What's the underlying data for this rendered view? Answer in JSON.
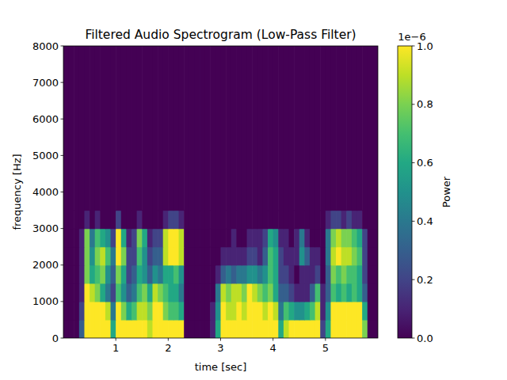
{
  "chart_data": {
    "type": "heatmap",
    "title": "Filtered Audio Spectrogram (Low-Pass Filter)",
    "x_label": "time [sec]",
    "y_label": "frequency [Hz]",
    "xlim": [
      0,
      6
    ],
    "xticks": [
      1,
      2,
      3,
      4,
      5
    ],
    "ylim": [
      0,
      8000
    ],
    "yticks": [
      0,
      1000,
      2000,
      3000,
      4000,
      5000,
      6000,
      7000,
      8000
    ],
    "time_bins": [
      0,
      0.1,
      0.2,
      0.3,
      0.4,
      0.5,
      0.6,
      0.7,
      0.8,
      0.9,
      1,
      1.1,
      1.2,
      1.3,
      1.4,
      1.5,
      1.6,
      1.7,
      1.8,
      1.9,
      2,
      2.1,
      2.2,
      2.3,
      2.4,
      2.5,
      2.6,
      2.7,
      2.8,
      2.9,
      3,
      3.1,
      3.2,
      3.3,
      3.4,
      3.5,
      3.6,
      3.7,
      3.8,
      3.9,
      4,
      4.1,
      4.2,
      4.3,
      4.4,
      4.5,
      4.6,
      4.7,
      4.8,
      4.9,
      5,
      5.1,
      5.2,
      5.3,
      5.4,
      5.5,
      5.6,
      5.7,
      5.8,
      5.9,
      6
    ],
    "freq_bins": [
      0,
      500,
      1000,
      1500,
      2000,
      2500,
      3000,
      3500,
      8000
    ],
    "values": [
      [
        0,
        0,
        0,
        3e-07,
        1e-06,
        1e-06,
        1e-06,
        1e-06,
        1e-06,
        6e-07,
        1e-06,
        1e-06,
        1e-06,
        1e-06,
        1e-06,
        1e-06,
        9e-07,
        1e-06,
        1e-06,
        1e-06,
        1e-06,
        1e-06,
        1e-06,
        0,
        0,
        0,
        0,
        0,
        1e-07,
        6e-07,
        1e-06,
        1e-06,
        1e-06,
        1e-06,
        1e-06,
        1e-06,
        1e-06,
        1e-06,
        1e-06,
        1e-06,
        1e-06,
        6e-07,
        9e-07,
        1e-06,
        1e-06,
        1e-06,
        1e-06,
        1e-06,
        1e-06,
        2e-07,
        6e-07,
        1e-06,
        1e-06,
        1e-06,
        1e-06,
        1e-06,
        1e-06,
        8e-07,
        0,
        0
      ],
      [
        0,
        0,
        0,
        2e-07,
        1e-06,
        1e-06,
        1e-06,
        1e-06,
        9e-07,
        4e-07,
        1e-06,
        8e-07,
        6e-07,
        7e-07,
        9e-07,
        9e-07,
        8e-07,
        1e-06,
        1e-06,
        8e-07,
        7e-07,
        7e-07,
        6e-07,
        0,
        0,
        0,
        0,
        0,
        1e-07,
        5e-07,
        1e-06,
        9e-07,
        9e-07,
        1e-06,
        9e-07,
        1e-06,
        1e-06,
        1e-06,
        9e-07,
        1e-06,
        9e-07,
        4e-07,
        7e-07,
        6e-07,
        5e-07,
        5e-07,
        6e-07,
        7e-07,
        9e-07,
        1e-07,
        5e-07,
        1e-06,
        1e-06,
        1e-06,
        1e-06,
        1e-06,
        1e-06,
        6e-07,
        0,
        0
      ],
      [
        0,
        0,
        0,
        1e-07,
        1e-06,
        9e-07,
        8e-07,
        6e-07,
        4e-07,
        2e-07,
        7e-07,
        5e-07,
        3e-07,
        4e-07,
        7e-07,
        8e-07,
        6e-07,
        9e-07,
        8e-07,
        7e-07,
        6e-07,
        6e-07,
        4e-07,
        0,
        0,
        0,
        0,
        0,
        0,
        4e-07,
        9e-07,
        8e-07,
        9e-07,
        9e-07,
        8e-07,
        1e-06,
        9e-07,
        8e-07,
        7e-07,
        8e-07,
        6e-07,
        3e-07,
        3e-07,
        2e-07,
        1e-07,
        1e-07,
        1e-07,
        3e-07,
        7e-07,
        1e-07,
        3e-07,
        7e-07,
        6e-07,
        7e-07,
        6e-07,
        7e-07,
        6e-07,
        3e-07,
        0,
        0
      ],
      [
        0,
        0,
        0,
        1e-07,
        8e-07,
        6e-07,
        7e-07,
        8e-07,
        5e-07,
        3e-07,
        8e-07,
        6e-07,
        2e-07,
        3e-07,
        6e-07,
        5e-07,
        3e-07,
        5e-07,
        4e-07,
        6e-07,
        6e-07,
        7e-07,
        5e-07,
        0,
        0,
        0,
        0,
        0,
        0,
        1e-07,
        3e-07,
        4e-07,
        3e-07,
        4e-07,
        4e-07,
        5e-07,
        5e-07,
        4e-07,
        5e-07,
        7e-07,
        6e-07,
        2e-07,
        2e-07,
        1e-07,
        0,
        1e-07,
        1e-07,
        1e-07,
        2e-07,
        0,
        3e-07,
        8e-07,
        7e-07,
        8e-07,
        7e-07,
        7e-07,
        6e-07,
        2e-07,
        0,
        0
      ],
      [
        0,
        0,
        0,
        1e-07,
        8e-07,
        5e-07,
        8e-07,
        9e-07,
        7e-07,
        4e-07,
        1e-06,
        8e-07,
        2e-07,
        2e-07,
        7e-07,
        5e-07,
        2e-07,
        3e-07,
        3e-07,
        9e-07,
        1e-06,
        1e-06,
        9e-07,
        0,
        0,
        0,
        0,
        0,
        0,
        0,
        1e-07,
        1e-07,
        1e-07,
        1e-07,
        1e-07,
        2e-07,
        2e-07,
        1e-07,
        3e-07,
        7e-07,
        6e-07,
        2e-07,
        1e-07,
        1e-07,
        1e-07,
        5e-07,
        3e-07,
        1e-07,
        1e-07,
        0,
        4e-07,
        9e-07,
        1e-06,
        9e-07,
        9e-07,
        8e-07,
        7e-07,
        2e-07,
        0,
        0
      ],
      [
        0,
        0,
        0,
        1e-07,
        8e-07,
        4e-07,
        7e-07,
        6e-07,
        5e-07,
        2e-07,
        1e-06,
        6e-07,
        1e-07,
        2e-07,
        8e-07,
        6e-07,
        1e-07,
        2e-07,
        2e-07,
        9e-07,
        1e-06,
        1e-06,
        9e-07,
        0,
        0,
        0,
        0,
        0,
        0,
        0,
        0,
        0,
        1e-07,
        0,
        0,
        1e-07,
        1e-07,
        1e-07,
        2e-07,
        6e-07,
        5e-07,
        1e-07,
        1e-07,
        0,
        1e-07,
        4e-07,
        1e-07,
        0,
        0,
        0,
        4e-07,
        8e-07,
        9e-07,
        8e-07,
        8e-07,
        7e-07,
        6e-07,
        2e-07,
        0,
        0
      ],
      [
        0,
        0,
        0,
        0,
        1e-07,
        0,
        1e-07,
        0,
        0,
        0,
        2e-07,
        0,
        0,
        0,
        1e-07,
        0,
        0,
        0,
        0,
        1e-07,
        2e-07,
        2e-07,
        1e-07,
        0,
        0,
        0,
        0,
        0,
        0,
        0,
        0,
        0,
        0,
        0,
        0,
        0,
        0,
        0,
        0,
        0,
        0,
        0,
        0,
        0,
        0,
        0,
        0,
        0,
        0,
        0,
        1e-07,
        2e-07,
        2e-07,
        1e-07,
        2e-07,
        1e-07,
        1e-07,
        0,
        0,
        0
      ],
      [
        0,
        0,
        0,
        0,
        0,
        0,
        0,
        0,
        0,
        0,
        0,
        0,
        0,
        0,
        0,
        0,
        0,
        0,
        0,
        0,
        0,
        0,
        0,
        0,
        0,
        0,
        0,
        0,
        0,
        0,
        0,
        0,
        0,
        0,
        0,
        0,
        0,
        0,
        0,
        0,
        0,
        0,
        0,
        0,
        0,
        0,
        0,
        0,
        0,
        0,
        0,
        0,
        0,
        0,
        0,
        0,
        0,
        0,
        0,
        0
      ]
    ],
    "colorbar": {
      "label": "Power",
      "offset_label": "1e−6",
      "range": [
        0,
        1e-06
      ],
      "ticks": [
        {
          "value": 0,
          "label": "0.0"
        },
        {
          "value": 2e-07,
          "label": "0.2"
        },
        {
          "value": 4e-07,
          "label": "0.4"
        },
        {
          "value": 6e-07,
          "label": "0.6"
        },
        {
          "value": 8e-07,
          "label": "0.8"
        },
        {
          "value": 1e-06,
          "label": "1.0"
        }
      ]
    }
  }
}
